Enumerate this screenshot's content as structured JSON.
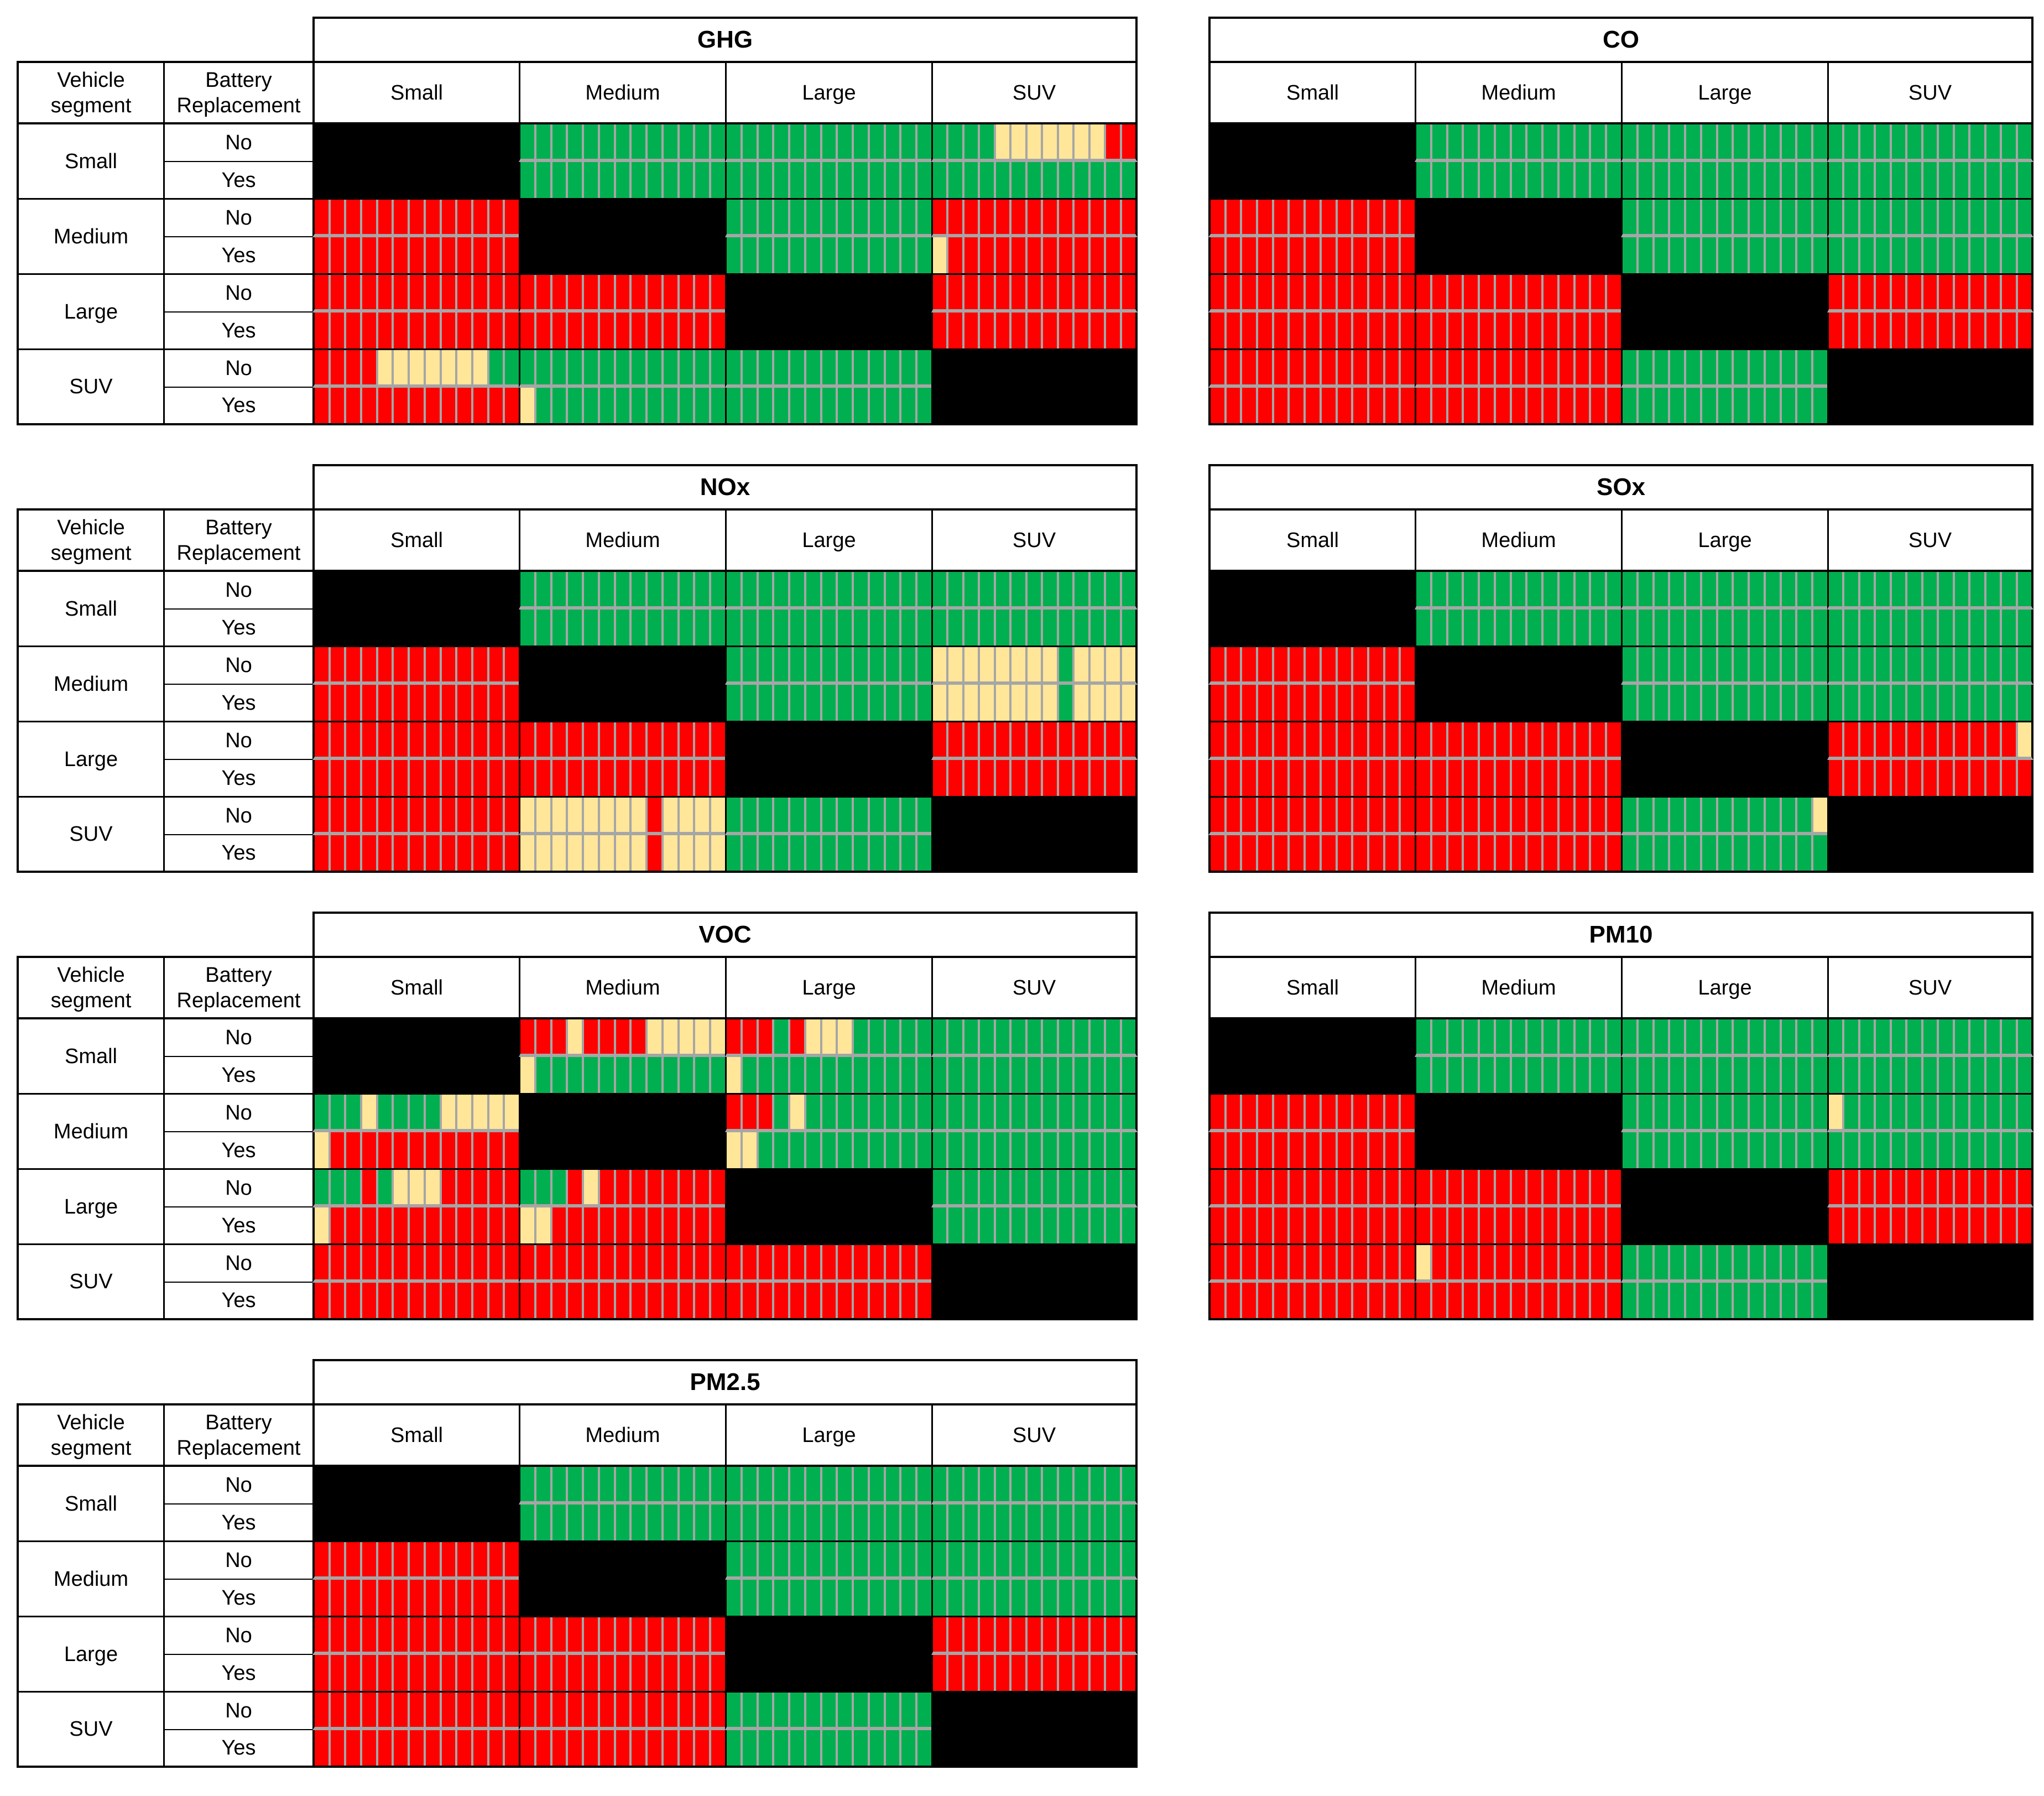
{
  "figure": {
    "row_header": [
      "Vehicle",
      "segment"
    ],
    "bat_header": [
      "Battery",
      "Replacement"
    ],
    "segments": [
      "Small",
      "Medium",
      "Large",
      "SUV"
    ],
    "battery_options": [
      "No",
      "Yes"
    ]
  },
  "colors": {
    "good": "#00B050",
    "neutral": "#FFE699",
    "bad": "#FF0000",
    "diagonal": "#000000",
    "separator": "#A6A6A6",
    "border": "#000000",
    "background": "#FFFFFF"
  },
  "chart_data": {
    "type": "heatmap",
    "description": "Pairwise comparison matrices of vehicle segments (rows, with/without battery replacement) vs vehicle segments (columns) for seven emission categories. Each non-diagonal cell holds 13 vertical stripes (scenarios) colored green (G), yellow (Y) or red (R). Diagonal cells (same segment vs same segment) are black (X).",
    "stripe_codes": {
      "G": "green #00B050",
      "Y": "yellow #FFE699",
      "R": "red #FF0000",
      "X": "black diagonal"
    },
    "stripes_per_cell": 13,
    "columns": [
      "Small",
      "Medium",
      "Large",
      "SUV"
    ],
    "row_labels": [
      {
        "segment": "Small",
        "battery": "No"
      },
      {
        "segment": "Small",
        "battery": "Yes"
      },
      {
        "segment": "Medium",
        "battery": "No"
      },
      {
        "segment": "Medium",
        "battery": "Yes"
      },
      {
        "segment": "Large",
        "battery": "No"
      },
      {
        "segment": "Large",
        "battery": "Yes"
      },
      {
        "segment": "SUV",
        "battery": "No"
      },
      {
        "segment": "SUV",
        "battery": "Yes"
      }
    ],
    "tables": [
      {
        "title": "GHG",
        "panel": "left",
        "cells": [
          [
            "X",
            "GGGGGGGGGGGGG",
            "GGGGGGGGGGGGG",
            "GGGGYYYYYYYRR"
          ],
          [
            "X",
            "GGGGGGGGGGGGG",
            "GGGGGGGGGGGGG",
            "GGGGGGGGGGGGG"
          ],
          [
            "RRRRRRRRRRRRR",
            "X",
            "GGGGGGGGGGGGG",
            "RRRRRRRRRRRRR"
          ],
          [
            "RRRRRRRRRRRRR",
            "X",
            "GGGGGGGGGGGGG",
            "YRRRRRRRRRRRR"
          ],
          [
            "RRRRRRRRRRRRR",
            "RRRRRRRRRRRRR",
            "X",
            "RRRRRRRRRRRRR"
          ],
          [
            "RRRRRRRRRRRRR",
            "RRRRRRRRRRRRR",
            "X",
            "RRRRRRRRRRRRR"
          ],
          [
            "RRRRYYYYYYYGG",
            "GGGGGGGGGGGGG",
            "GGGGGGGGGGGGG",
            "X"
          ],
          [
            "RRRRRRRRRRRRR",
            "YGGGGGGGGGGGG",
            "GGGGGGGGGGGGG",
            "X"
          ]
        ]
      },
      {
        "title": "NOx",
        "panel": "left",
        "cells": [
          [
            "X",
            "GGGGGGGGGGGGG",
            "GGGGGGGGGGGGG",
            "GGGGGGGGGGGGG"
          ],
          [
            "X",
            "GGGGGGGGGGGGG",
            "GGGGGGGGGGGGG",
            "GGGGGGGGGGGGG"
          ],
          [
            "RRRRRRRRRRRRR",
            "X",
            "GGGGGGGGGGGGG",
            "YYYYYYYYGYYYY"
          ],
          [
            "RRRRRRRRRRRRR",
            "X",
            "GGGGGGGGGGGGG",
            "YYYYYYYYGYYYY"
          ],
          [
            "RRRRRRRRRRRRR",
            "RRRRRRRRRRRRR",
            "X",
            "RRRRRRRRRRRRR"
          ],
          [
            "RRRRRRRRRRRRR",
            "RRRRRRRRRRRRR",
            "X",
            "RRRRRRRRRRRRR"
          ],
          [
            "RRRRRRRRRRRRR",
            "YYYYYYYYRYYYY",
            "GGGGGGGGGGGGG",
            "X"
          ],
          [
            "RRRRRRRRRRRRR",
            "YYYYYYYYRYYYY",
            "GGGGGGGGGGGGG",
            "X"
          ]
        ]
      },
      {
        "title": "VOC",
        "panel": "left",
        "cells": [
          [
            "X",
            "RRRYRRRRYYYYY",
            "RRRGRYYYGGGGG",
            "GGGGGGGGGGGGG"
          ],
          [
            "X",
            "YGGGGGGGGGGGG",
            "YGGGGGGGGGGGG",
            "GGGGGGGGGGGGG"
          ],
          [
            "GGGYGGGGYYYYY",
            "X",
            "RRRGYGGGGGGGG",
            "GGGGGGGGGGGGG"
          ],
          [
            "YRRRRRRRRRRRR",
            "X",
            "YYGGGGGGGGGGG",
            "GGGGGGGGGGGGG"
          ],
          [
            "GGGRGYYYRRRRR",
            "GGGRYRRRRRRRR",
            "X",
            "GGGGGGGGGGGGG"
          ],
          [
            "YRRRRRRRRRRRR",
            "YYRRRRRRRRRRR",
            "X",
            "GGGGGGGGGGGGG"
          ],
          [
            "RRRRRRRRRRRRR",
            "RRRRRRRRRRRRR",
            "RRRRRRRRRRRRR",
            "X"
          ],
          [
            "RRRRRRRRRRRRR",
            "RRRRRRRRRRRRR",
            "RRRRRRRRRRRRR",
            "X"
          ]
        ]
      },
      {
        "title": "PM2.5",
        "panel": "left",
        "cells": [
          [
            "X",
            "GGGGGGGGGGGGG",
            "GGGGGGGGGGGGG",
            "GGGGGGGGGGGGG"
          ],
          [
            "X",
            "GGGGGGGGGGGGG",
            "GGGGGGGGGGGGG",
            "GGGGGGGGGGGGG"
          ],
          [
            "RRRRRRRRRRRRR",
            "X",
            "GGGGGGGGGGGGG",
            "GGGGGGGGGGGGG"
          ],
          [
            "RRRRRRRRRRRRR",
            "X",
            "GGGGGGGGGGGGG",
            "GGGGGGGGGGGGG"
          ],
          [
            "RRRRRRRRRRRRR",
            "RRRRRRRRRRRRR",
            "X",
            "RRRRRRRRRRRRR"
          ],
          [
            "RRRRRRRRRRRRR",
            "RRRRRRRRRRRRR",
            "X",
            "RRRRRRRRRRRRR"
          ],
          [
            "RRRRRRRRRRRRR",
            "RRRRRRRRRRRRR",
            "GGGGGGGGGGGGG",
            "X"
          ],
          [
            "RRRRRRRRRRRRR",
            "RRRRRRRRRRRRR",
            "GGGGGGGGGGGGG",
            "X"
          ]
        ]
      },
      {
        "title": "CO",
        "panel": "right",
        "cells": [
          [
            "X",
            "GGGGGGGGGGGGG",
            "GGGGGGGGGGGGG",
            "GGGGGGGGGGGGG"
          ],
          [
            "X",
            "GGGGGGGGGGGGG",
            "GGGGGGGGGGGGG",
            "GGGGGGGGGGGGG"
          ],
          [
            "RRRRRRRRRRRRR",
            "X",
            "GGGGGGGGGGGGG",
            "GGGGGGGGGGGGG"
          ],
          [
            "RRRRRRRRRRRRR",
            "X",
            "GGGGGGGGGGGGG",
            "GGGGGGGGGGGGG"
          ],
          [
            "RRRRRRRRRRRRR",
            "RRRRRRRRRRRRR",
            "X",
            "RRRRRRRRRRRRR"
          ],
          [
            "RRRRRRRRRRRRR",
            "RRRRRRRRRRRRR",
            "X",
            "RRRRRRRRRRRRR"
          ],
          [
            "RRRRRRRRRRRRR",
            "RRRRRRRRRRRRR",
            "GGGGGGGGGGGGG",
            "X"
          ],
          [
            "RRRRRRRRRRRRR",
            "RRRRRRRRRRRRR",
            "GGGGGGGGGGGGG",
            "X"
          ]
        ]
      },
      {
        "title": "SOx",
        "panel": "right",
        "cells": [
          [
            "X",
            "GGGGGGGGGGGGG",
            "GGGGGGGGGGGGG",
            "GGGGGGGGGGGGG"
          ],
          [
            "X",
            "GGGGGGGGGGGGG",
            "GGGGGGGGGGGGG",
            "GGGGGGGGGGGGG"
          ],
          [
            "RRRRRRRRRRRRR",
            "X",
            "GGGGGGGGGGGGG",
            "GGGGGGGGGGGGG"
          ],
          [
            "RRRRRRRRRRRRR",
            "X",
            "GGGGGGGGGGGGG",
            "GGGGGGGGGGGGG"
          ],
          [
            "RRRRRRRRRRRRR",
            "RRRRRRRRRRRRR",
            "X",
            "RRRRRRRRRRRRY"
          ],
          [
            "RRRRRRRRRRRRR",
            "RRRRRRRRRRRRR",
            "X",
            "RRRRRRRRRRRRR"
          ],
          [
            "RRRRRRRRRRRRR",
            "RRRRRRRRRRRRR",
            "GGGGGGGGGGGGY",
            "X"
          ],
          [
            "RRRRRRRRRRRRR",
            "RRRRRRRRRRRRR",
            "GGGGGGGGGGGGG",
            "X"
          ]
        ]
      },
      {
        "title": "PM10",
        "panel": "right",
        "cells": [
          [
            "X",
            "GGGGGGGGGGGGG",
            "GGGGGGGGGGGGG",
            "GGGGGGGGGGGGG"
          ],
          [
            "X",
            "GGGGGGGGGGGGG",
            "GGGGGGGGGGGGG",
            "GGGGGGGGGGGGG"
          ],
          [
            "RRRRRRRRRRRRR",
            "X",
            "GGGGGGGGGGGGG",
            "YGGGGGGGGGGGG"
          ],
          [
            "RRRRRRRRRRRRR",
            "X",
            "GGGGGGGGGGGGG",
            "GGGGGGGGGGGGG"
          ],
          [
            "RRRRRRRRRRRRR",
            "RRRRRRRRRRRRR",
            "X",
            "RRRRRRRRRRRRR"
          ],
          [
            "RRRRRRRRRRRRR",
            "RRRRRRRRRRRRR",
            "X",
            "RRRRRRRRRRRRR"
          ],
          [
            "RRRRRRRRRRRRR",
            "YRRRRRRRRRRRR",
            "GGGGGGGGGGGGG",
            "X"
          ],
          [
            "RRRRRRRRRRRRR",
            "RRRRRRRRRRRRR",
            "GGGGGGGGGGGGG",
            "X"
          ]
        ]
      }
    ]
  }
}
